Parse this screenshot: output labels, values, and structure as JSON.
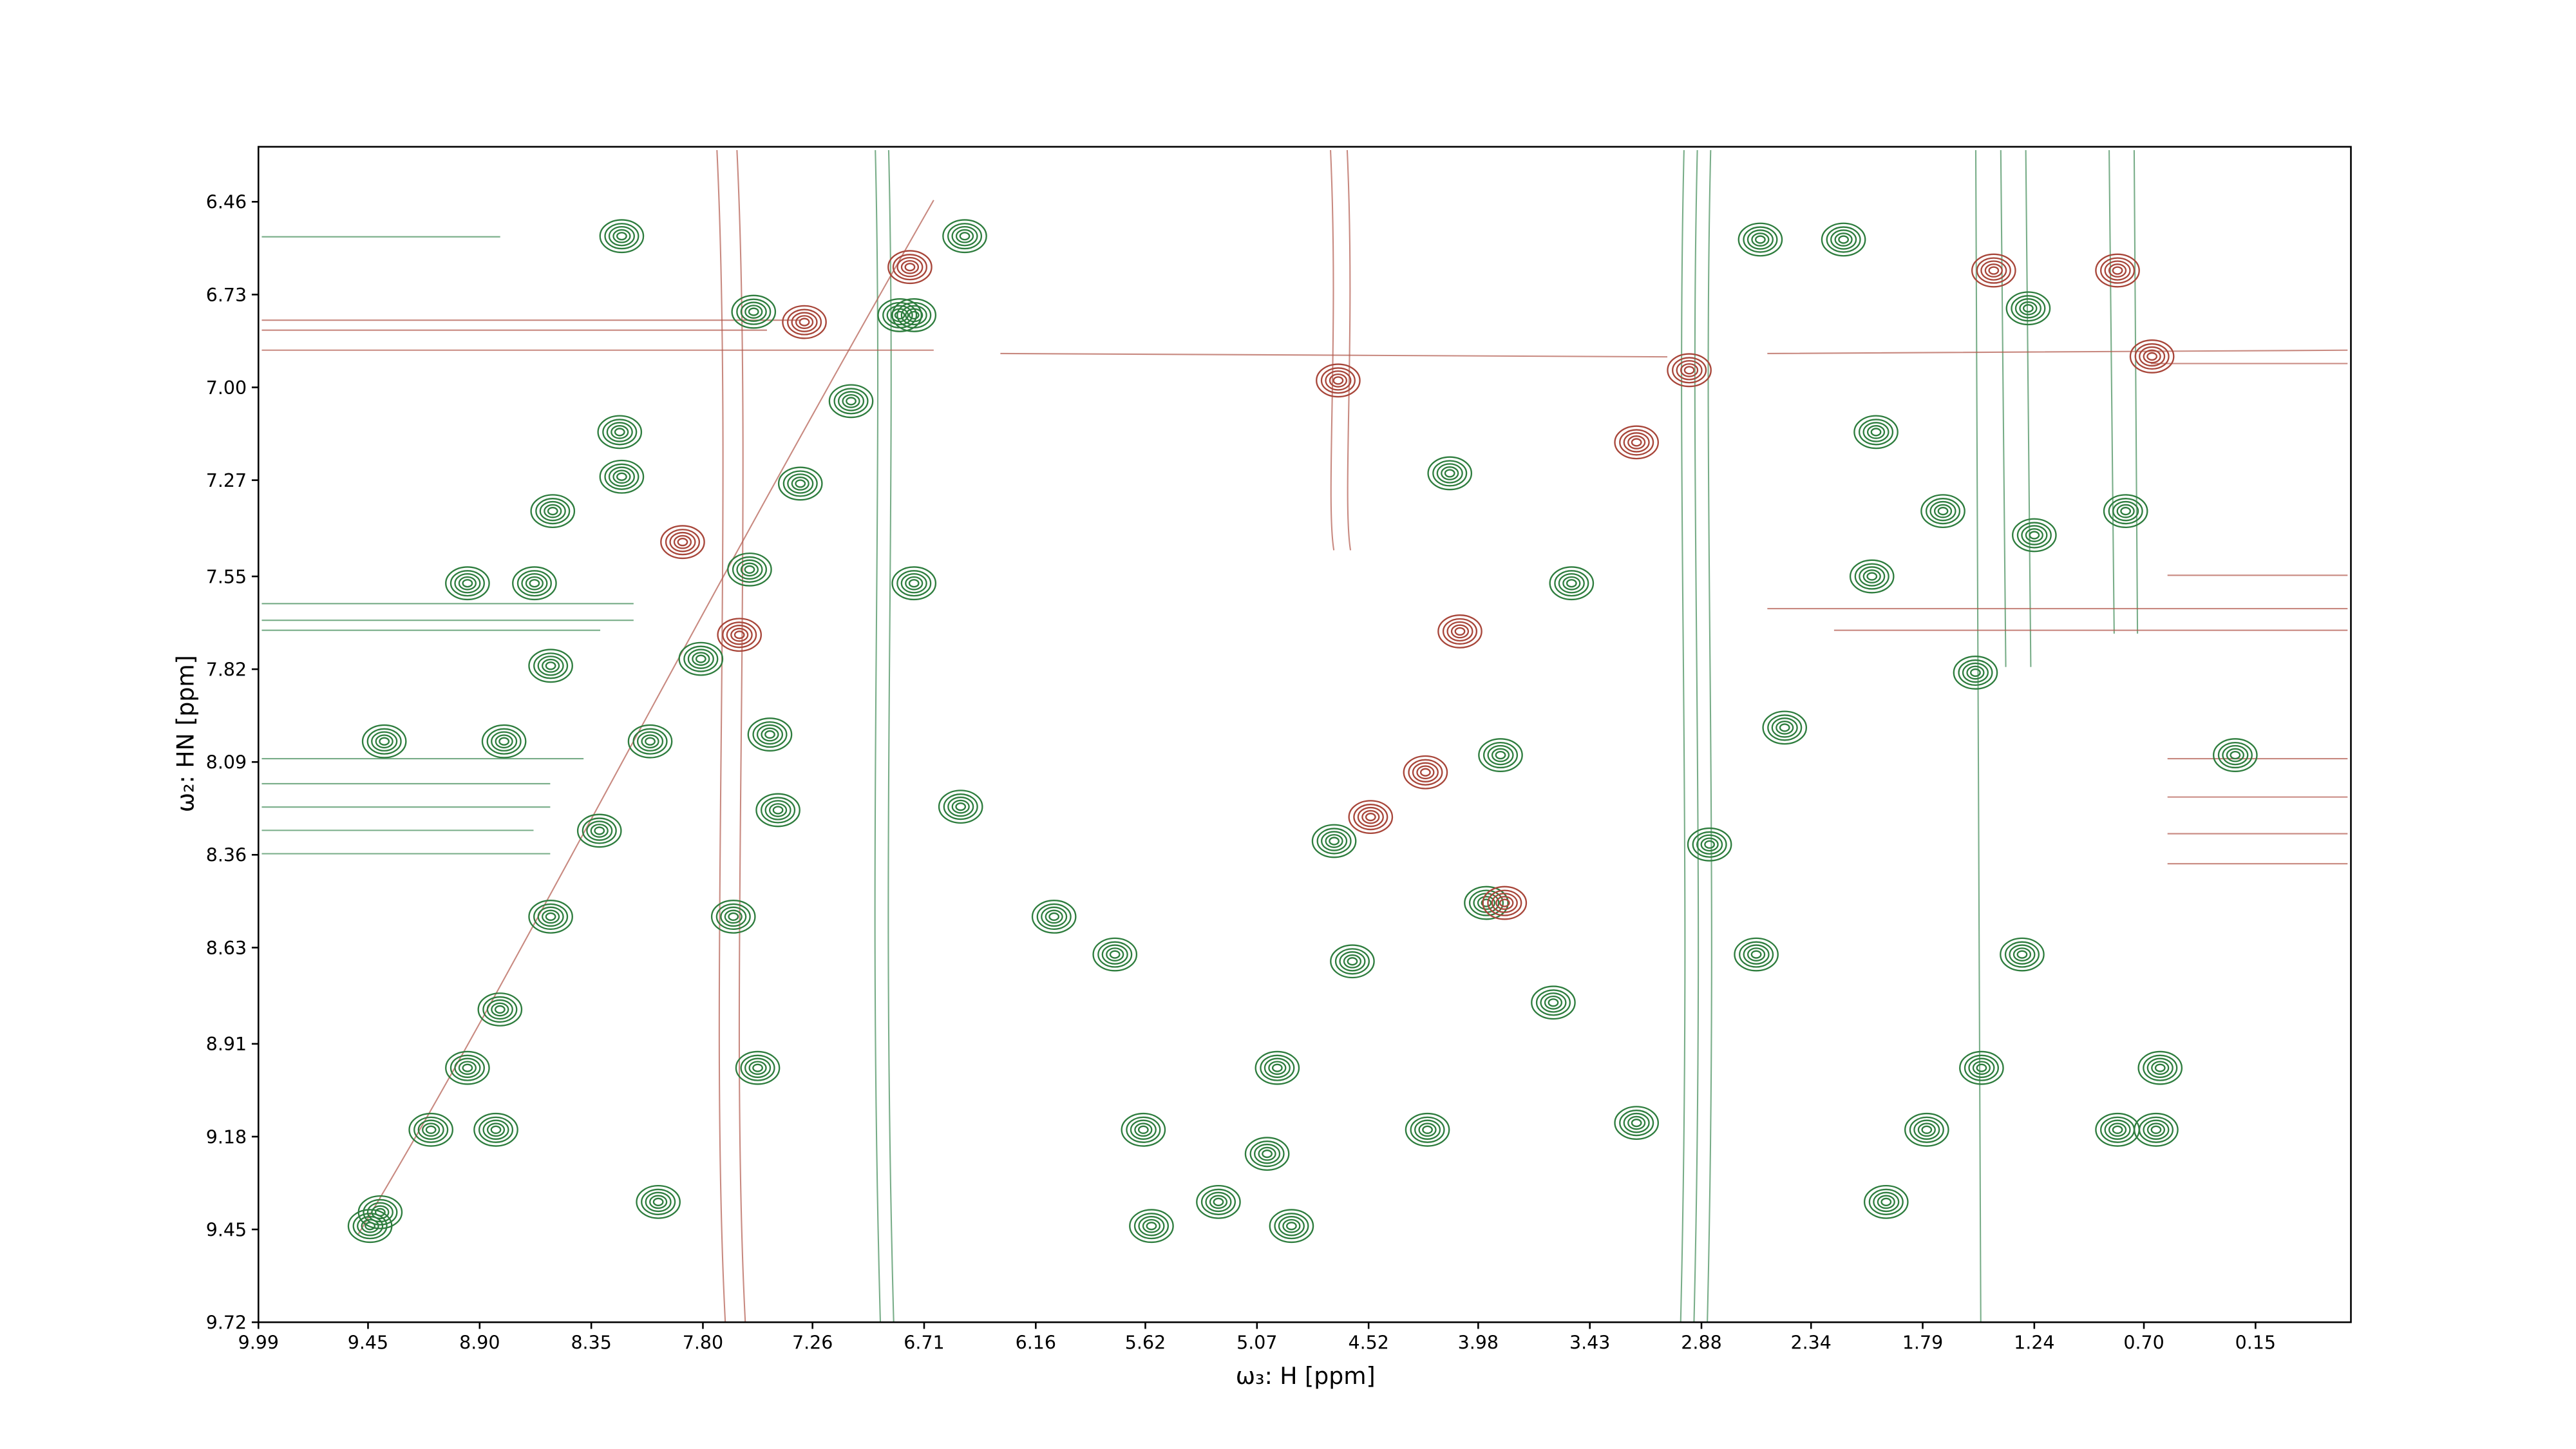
{
  "chart_data": {
    "type": "contour",
    "xlabel": "ω₃: H [ppm]",
    "ylabel": "ω₂: HN [ppm]",
    "xlim": [
      9.99,
      -0.32
    ],
    "ylim": [
      9.72,
      6.3
    ],
    "xticks": [
      9.99,
      9.45,
      {
        "value": 8.9,
        "label": "8.90"
      },
      8.35,
      {
        "value": 7.8,
        "label": "7.80"
      },
      7.26,
      6.71,
      6.16,
      5.62,
      5.07,
      4.52,
      3.98,
      3.43,
      2.88,
      2.34,
      1.79,
      1.24,
      {
        "value": 0.7,
        "label": "0.70"
      },
      0.15
    ],
    "yticks": [
      6.46,
      6.73,
      {
        "value": 7.0,
        "label": "7.00"
      },
      7.27,
      7.55,
      7.82,
      8.09,
      8.36,
      8.63,
      8.91,
      9.18,
      9.45,
      9.72
    ],
    "grid": false,
    "series": [
      {
        "color": "#2e7d3e",
        "x": [
          8.2,
          6.51,
          7.55,
          6.76,
          8.21,
          8.54,
          8.2,
          8.96,
          8.63,
          6.76,
          8.55,
          9.37,
          8.78,
          6.53,
          7.47,
          8.96,
          7.53,
          9.44,
          9.14,
          8.82,
          8.02,
          6.07,
          5.77,
          5.63,
          5.59,
          5.26,
          5.02,
          4.97,
          4.9,
          4.6,
          4.23,
          3.61,
          3.94,
          3.2,
          0.25,
          0.62,
          0.83,
          0.64,
          1.77,
          1.97,
          1.5,
          2.59,
          2.18,
          1.27,
          2.02,
          1.69,
          1.24,
          2.04,
          1.53,
          2.47,
          2.84,
          4.12,
          3.52,
          3.87,
          4.69,
          2.61,
          1.3,
          0.79,
          7.65,
          7.43,
          9.39,
          8.8,
          8.55,
          8.31,
          8.06,
          7.81,
          7.57,
          7.32,
          7.07,
          6.83
        ],
        "values": [
          6.56,
          6.56,
          6.78,
          6.79,
          7.13,
          7.36,
          7.26,
          7.57,
          7.57,
          7.57,
          7.81,
          8.03,
          8.03,
          8.22,
          8.01,
          8.98,
          8.98,
          9.44,
          9.16,
          9.16,
          9.37,
          8.54,
          8.65,
          9.16,
          9.44,
          9.37,
          9.23,
          8.98,
          9.44,
          8.67,
          9.16,
          8.79,
          8.5,
          9.14,
          8.07,
          8.98,
          9.16,
          9.16,
          9.16,
          9.37,
          8.98,
          6.57,
          6.57,
          6.77,
          7.13,
          7.36,
          7.43,
          7.55,
          7.83,
          7.99,
          8.33,
          7.25,
          7.57,
          8.07,
          8.32,
          8.65,
          8.65,
          7.36,
          8.54,
          8.23,
          9.4,
          8.81,
          8.54,
          8.29,
          8.03,
          7.79,
          7.53,
          7.28,
          7.04,
          6.79
        ]
      },
      {
        "color": "#a8463a",
        "x": [
          7.3,
          6.78,
          1.44,
          0.83,
          2.94,
          4.07,
          3.85,
          4.51,
          4.24,
          7.9,
          0.66,
          3.2,
          7.62,
          4.67
        ],
        "values": [
          6.81,
          6.65,
          6.66,
          6.66,
          6.95,
          7.71,
          8.5,
          8.25,
          8.12,
          7.45,
          6.91,
          7.16,
          7.72,
          6.98
        ]
      }
    ]
  }
}
